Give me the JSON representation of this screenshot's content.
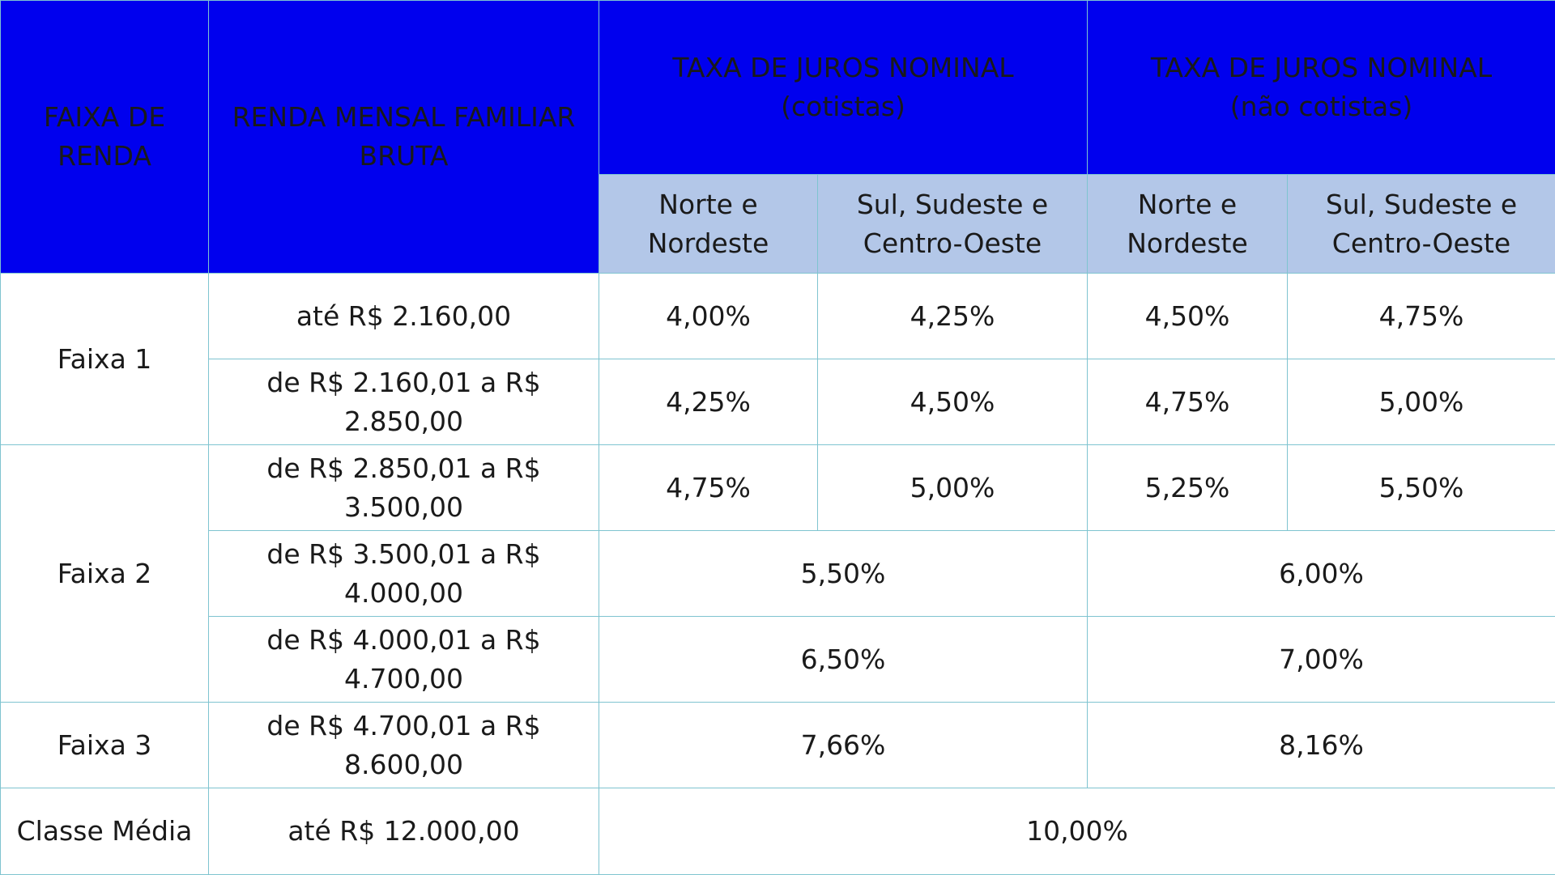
{
  "header": {
    "faixa": [
      "FAIXA DE",
      "RENDA"
    ],
    "renda": [
      "RENDA MENSAL FAMILIAR",
      "BRUTA"
    ],
    "cotistas": [
      "TAXA DE JUROS NOMINAL",
      "(cotistas)"
    ],
    "nao_cotistas": [
      "TAXA DE JUROS NOMINAL",
      "(não cotistas)"
    ],
    "regiao_norte": [
      "Norte e",
      "Nordeste"
    ],
    "regiao_sul": [
      "Sul, Sudeste e",
      "Centro-Oeste"
    ]
  },
  "rows": {
    "r1": {
      "faixa": "Faixa 1",
      "renda": "até R$ 2.160,00",
      "rates": [
        "4,00%",
        "4,25%",
        "4,50%",
        "4,75%"
      ]
    },
    "r2": {
      "renda": "de R$ 2.160,01 a R$ 2.850,00",
      "rates": [
        "4,25%",
        "4,50%",
        "4,75%",
        "5,00%"
      ]
    },
    "r3": {
      "faixa": "Faixa 2",
      "renda": "de R$ 2.850,01 a R$ 3.500,00",
      "rates": [
        "4,75%",
        "5,00%",
        "5,25%",
        "5,50%"
      ]
    },
    "r4": {
      "renda": "de R$ 3.500,01 a R$ 4.000,00",
      "cotistas": "5,50%",
      "nao_cotistas": "6,00%"
    },
    "r5": {
      "renda": "de R$ 4.000,01 a R$ 4.700,00",
      "cotistas": "6,50%",
      "nao_cotistas": "7,00%"
    },
    "r6": {
      "faixa": "Faixa 3",
      "renda": "de R$ 4.700,01 a R$ 8.600,00",
      "cotistas": "7,66%",
      "nao_cotistas": "8,16%"
    },
    "r7": {
      "faixa": "Classe Média",
      "renda": "até R$ 12.000,00",
      "taxa": "10,00%"
    }
  }
}
